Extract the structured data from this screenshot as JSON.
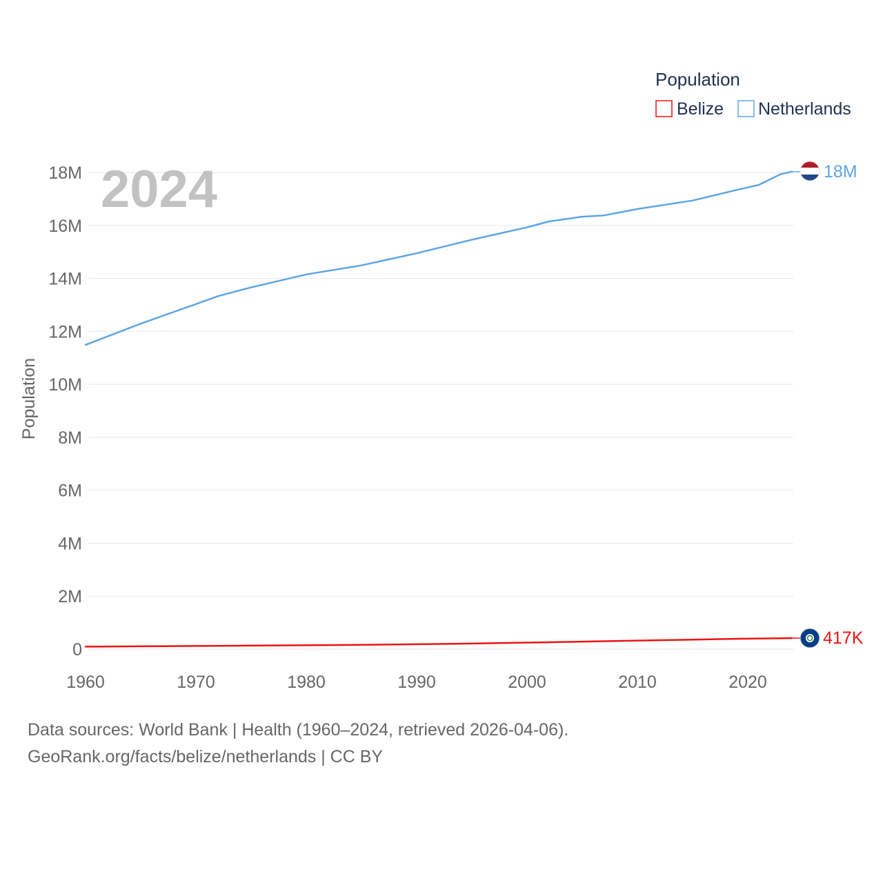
{
  "legend": {
    "title": "Population",
    "items": [
      {
        "name": "Belize",
        "color": "#ee1111"
      },
      {
        "name": "Netherlands",
        "color": "#5ea5e3"
      }
    ]
  },
  "year_label": "2024",
  "end_labels": {
    "netherlands": "18M",
    "belize": "417K"
  },
  "footer": {
    "source": "Data sources: World Bank | Health (1960–2024, retrieved 2026-04-06).",
    "credit": "GeoRank.org/facts/belize/netherlands | CC BY"
  },
  "chart_data": {
    "type": "line",
    "title": "",
    "xlabel": "",
    "ylabel": "Population",
    "xlim": [
      1960,
      2024
    ],
    "ylim": [
      0,
      18000000
    ],
    "x_ticks": [
      1960,
      1970,
      1980,
      1990,
      2000,
      2010,
      2020
    ],
    "y_ticks": [
      {
        "value": 0,
        "label": "0"
      },
      {
        "value": 2000000,
        "label": "2M"
      },
      {
        "value": 4000000,
        "label": "4M"
      },
      {
        "value": 6000000,
        "label": "6M"
      },
      {
        "value": 8000000,
        "label": "8M"
      },
      {
        "value": 10000000,
        "label": "10M"
      },
      {
        "value": 12000000,
        "label": "12M"
      },
      {
        "value": 14000000,
        "label": "14M"
      },
      {
        "value": 16000000,
        "label": "16M"
      },
      {
        "value": 18000000,
        "label": "18M"
      }
    ],
    "grid": true,
    "legend_position": "top-right",
    "x": [
      1960,
      1965,
      1970,
      1972,
      1975,
      1980,
      1985,
      1990,
      1995,
      2000,
      2002,
      2005,
      2007,
      2010,
      2015,
      2019,
      2021,
      2023,
      2024
    ],
    "series": [
      {
        "name": "Netherlands",
        "color": "#5ea5e3",
        "values": [
          11490000,
          12290000,
          13030000,
          13330000,
          13660000,
          14150000,
          14490000,
          14950000,
          15460000,
          15930000,
          16150000,
          16330000,
          16380000,
          16620000,
          16940000,
          17340000,
          17530000,
          17940000,
          18030000
        ]
      },
      {
        "name": "Belize",
        "color": "#ee1111",
        "values": [
          94000,
          106000,
          120000,
          125000,
          134000,
          145000,
          165000,
          184000,
          211000,
          247000,
          260000,
          283000,
          300000,
          323000,
          360000,
          390000,
          400000,
          411000,
          417000
        ]
      }
    ]
  }
}
